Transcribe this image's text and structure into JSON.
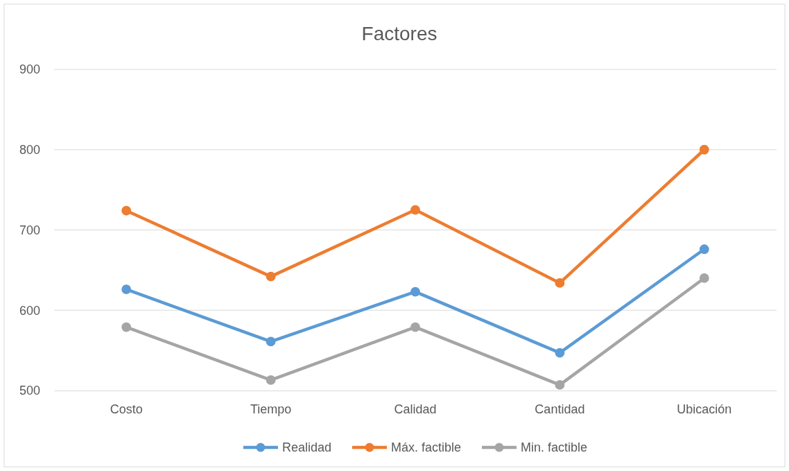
{
  "chart_data": {
    "type": "line",
    "title": "Factores",
    "categories": [
      "Costo",
      "Tiempo",
      "Calidad",
      "Cantidad",
      "Ubicación"
    ],
    "series": [
      {
        "name": "Realidad",
        "color": "#5b9bd5",
        "values": [
          626,
          561,
          623,
          547,
          676
        ]
      },
      {
        "name": "Máx. factible",
        "color": "#ed7d31",
        "values": [
          724,
          642,
          725,
          634,
          800
        ]
      },
      {
        "name": "Min. factible",
        "color": "#a5a5a5",
        "values": [
          579,
          513,
          579,
          507,
          640
        ]
      }
    ],
    "ylim": [
      500,
      900
    ],
    "yticks": [
      500,
      600,
      700,
      800,
      900
    ],
    "grid": "y",
    "legend": "bottom",
    "marker": "circle",
    "line_style": "solid"
  }
}
